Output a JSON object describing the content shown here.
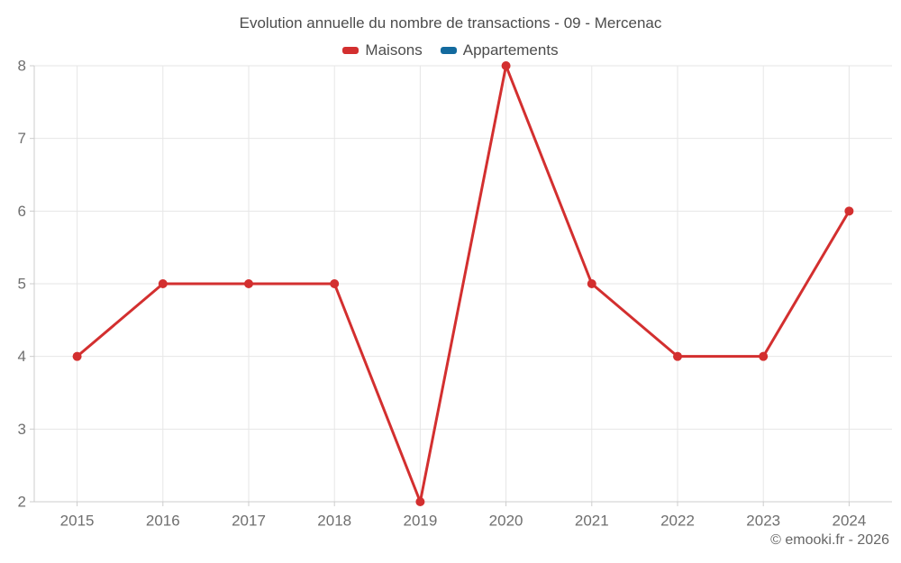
{
  "title": "Evolution annuelle du nombre de transactions - 09 - Mercenac",
  "copyright": "© emooki.fr - 2026",
  "colors": {
    "maisons": "#d32f2f",
    "appartements": "#136a9e",
    "grid": "#e6e6e6",
    "axis": "#cccccc",
    "tick_label": "#6f6f6f",
    "title_text": "#4c4c4c",
    "copyright_text": "#666666",
    "background": "#ffffff"
  },
  "legend": {
    "items": [
      {
        "label": "Maisons",
        "color": "#d32f2f"
      },
      {
        "label": "Appartements",
        "color": "#136a9e"
      }
    ]
  },
  "chart_data": {
    "type": "line",
    "title": "Evolution annuelle du nombre de transactions - 09 - Mercenac",
    "categories": [
      "2015",
      "2016",
      "2017",
      "2018",
      "2019",
      "2020",
      "2021",
      "2022",
      "2023",
      "2024"
    ],
    "series": [
      {
        "name": "Maisons",
        "color": "#d32f2f",
        "values": [
          4,
          5,
          5,
          5,
          2,
          8,
          5,
          4,
          4,
          6
        ]
      },
      {
        "name": "Appartements",
        "color": "#136a9e",
        "values": []
      }
    ],
    "xlabel": "",
    "ylabel": "",
    "ylim": [
      2,
      8
    ],
    "yticks": [
      2,
      3,
      4,
      5,
      6,
      7,
      8
    ],
    "grid": true,
    "legend_position": "top",
    "marker": "circle",
    "marker_radius": 5,
    "line_width": 3
  }
}
